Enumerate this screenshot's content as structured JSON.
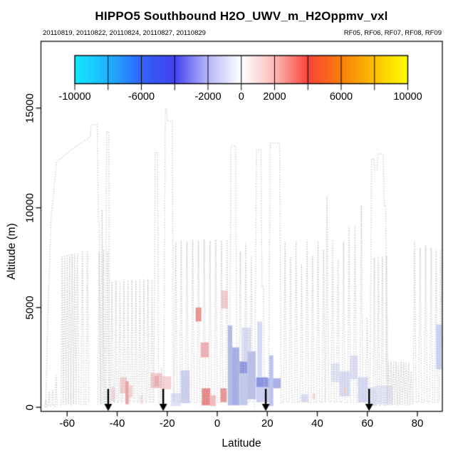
{
  "page": {
    "background": "#ffffff"
  },
  "chart_data": {
    "type": "scatter",
    "title": "HIPPO5 Southbound H2O_UWV_m_H2Oppmv_vxl",
    "subtitle_left": "20110819, 20110822, 20110824, 20110827, 20110829",
    "subtitle_right": "RF05, RF06, RF07, RF08, RF09",
    "xlabel": "Latitude",
    "ylabel": "Altitude (m)",
    "xlim": [
      -70.6,
      89.8
    ],
    "ylim": [
      -210,
      18350
    ],
    "grid": false,
    "x_ticks": [
      -60,
      -40,
      -20,
      0,
      20,
      40,
      60,
      80
    ],
    "y_ticks": [
      0,
      5000,
      10000,
      15000
    ],
    "track_color": "#c3c3c3",
    "arrow_color": "#000000",
    "axis_color": "#1a1a1a",
    "colorbar": {
      "position": "top-inside",
      "min": -10000,
      "max": 10000,
      "tick_step": 2000,
      "labeled_ticks": [
        -10000,
        -6000,
        -2000,
        0,
        2000,
        6000,
        10000
      ],
      "gradient_stops": [
        {
          "value": -10000,
          "color": "#12e9fe"
        },
        {
          "value": -8000,
          "color": "#1db4fd"
        },
        {
          "value": -6000,
          "color": "#3163fb"
        },
        {
          "value": -4000,
          "color": "#4442f0"
        },
        {
          "value": -2000,
          "color": "#b7b8f8"
        },
        {
          "value": 0,
          "color": "#ffffff"
        },
        {
          "value": 2000,
          "color": "#fbbcb6"
        },
        {
          "value": 4000,
          "color": "#fa423a"
        },
        {
          "value": 6000,
          "color": "#f87e09"
        },
        {
          "value": 8000,
          "color": "#fcc103"
        },
        {
          "value": 10000,
          "color": "#fefe00"
        }
      ]
    },
    "event_arrows_lat": [
      -43.6,
      -21.6,
      19.4,
      60.7
    ],
    "flight_track_segments": [
      [
        [
          -68.9,
          50
        ],
        [
          -68.5,
          350
        ],
        [
          -68.1,
          50
        ],
        [
          -67.6,
          50
        ],
        [
          -67.2,
          800
        ],
        [
          -66.8,
          50
        ],
        [
          -66.2,
          50
        ],
        [
          -65.8,
          850
        ],
        [
          -65.4,
          50
        ],
        [
          -64.8,
          50
        ],
        [
          -64.4,
          1600
        ],
        [
          -64.0,
          50
        ]
      ],
      [
        [
          -68.6,
          0
        ],
        [
          -67.6,
          5000
        ],
        [
          -66.4,
          9500
        ],
        [
          -64.2,
          12300
        ],
        [
          -58.0,
          12950
        ],
        [
          -50.7,
          13560
        ],
        [
          -50.5,
          14160
        ],
        [
          -48.0,
          14160
        ],
        [
          -47.55,
          9300
        ],
        [
          -47.15,
          9300
        ],
        [
          -46.6,
          250
        ],
        [
          -46.0,
          9900
        ],
        [
          -45.45,
          250
        ],
        [
          -44.8,
          250
        ],
        [
          -44.2,
          13830
        ],
        [
          -43.35,
          13830
        ],
        [
          -43.0,
          250
        ]
      ],
      [
        [
          -62.4,
          100
        ],
        [
          -62.0,
          7600
        ],
        [
          -61.5,
          150
        ],
        [
          -61.0,
          7620
        ],
        [
          -60.5,
          100
        ],
        [
          -60.0,
          7650
        ],
        [
          -59.5,
          150
        ],
        [
          -59.0,
          7650
        ],
        [
          -58.5,
          100
        ],
        [
          -58.0,
          7680
        ],
        [
          -57.5,
          150
        ],
        [
          -57.0,
          7700
        ],
        [
          -56.5,
          100
        ],
        [
          -55.9,
          7700
        ],
        [
          -55.3,
          150
        ],
        [
          -54.5,
          150
        ],
        [
          -53.9,
          7800
        ],
        [
          -53.3,
          150
        ],
        [
          -52.5,
          150
        ],
        [
          -51.9,
          7800
        ],
        [
          -51.3,
          150
        ]
      ],
      [
        [
          -47.7,
          150
        ],
        [
          -47.2,
          7800
        ],
        [
          -46.7,
          150
        ],
        [
          -46.0,
          150
        ],
        [
          -45.5,
          7900
        ],
        [
          -45.0,
          150
        ],
        [
          -44.3,
          150
        ],
        [
          -43.8,
          7800
        ],
        [
          -43.3,
          150
        ]
      ],
      [
        [
          -42.6,
          250
        ],
        [
          -42.1,
          6300
        ],
        [
          -41.6,
          250
        ],
        [
          -41.0,
          250
        ],
        [
          -40.5,
          6350
        ],
        [
          -40.0,
          250
        ],
        [
          -39.4,
          250
        ],
        [
          -38.9,
          6300
        ],
        [
          -38.4,
          250
        ],
        [
          -37.8,
          250
        ],
        [
          -37.3,
          6400
        ],
        [
          -36.8,
          250
        ],
        [
          -36.2,
          250
        ],
        [
          -35.7,
          6350
        ],
        [
          -35.2,
          250
        ],
        [
          -34.6,
          250
        ],
        [
          -34.1,
          6400
        ],
        [
          -33.6,
          250
        ],
        [
          -33.0,
          250
        ],
        [
          -32.5,
          6350
        ],
        [
          -32.0,
          250
        ],
        [
          -31.4,
          250
        ],
        [
          -30.9,
          6450
        ],
        [
          -30.4,
          250
        ],
        [
          -29.8,
          250
        ],
        [
          -29.3,
          6400
        ],
        [
          -28.8,
          250
        ],
        [
          -28.2,
          250
        ],
        [
          -27.7,
          6450
        ],
        [
          -27.2,
          250
        ],
        [
          -26.6,
          250
        ],
        [
          -26.1,
          6400
        ],
        [
          -25.6,
          250
        ]
      ],
      [
        [
          -25.4,
          250
        ],
        [
          -24.8,
          12760
        ],
        [
          -23.9,
          12780
        ],
        [
          -23.45,
          250
        ],
        [
          -22.8,
          250
        ],
        [
          -22.3,
          2000
        ],
        [
          -21.9,
          0
        ]
      ],
      [
        [
          -21.4,
          0
        ],
        [
          -20.75,
          14950
        ],
        [
          -20.15,
          14950
        ],
        [
          -20.05,
          14350
        ],
        [
          -17.95,
          14350
        ],
        [
          -17.5,
          250
        ]
      ],
      [
        [
          -17.2,
          250
        ],
        [
          -16.6,
          8300
        ],
        [
          -16.0,
          250
        ],
        [
          -15.0,
          250
        ],
        [
          -14.4,
          8350
        ],
        [
          -13.8,
          250
        ],
        [
          -12.7,
          250
        ],
        [
          -12.1,
          8300
        ],
        [
          -11.5,
          250
        ],
        [
          -10.4,
          250
        ],
        [
          -9.8,
          8400
        ],
        [
          -9.2,
          250
        ],
        [
          -8.1,
          250
        ],
        [
          -7.5,
          8350
        ],
        [
          -6.9,
          250
        ],
        [
          -5.8,
          250
        ],
        [
          -5.2,
          8400
        ],
        [
          -4.6,
          250
        ],
        [
          -3.5,
          250
        ],
        [
          -2.9,
          8350
        ],
        [
          -2.3,
          250
        ],
        [
          -1.2,
          250
        ],
        [
          -0.6,
          8400
        ],
        [
          0.0,
          250
        ],
        [
          1.1,
          250
        ],
        [
          1.7,
          8350
        ],
        [
          2.3,
          250
        ],
        [
          3.3,
          250
        ],
        [
          3.9,
          8400
        ],
        [
          4.5,
          250
        ]
      ],
      [
        [
          4.9,
          250
        ],
        [
          5.5,
          13100
        ],
        [
          7.3,
          13100
        ],
        [
          7.9,
          250
        ],
        [
          8.6,
          250
        ],
        [
          9.2,
          7800
        ],
        [
          9.8,
          250
        ],
        [
          10.8,
          250
        ],
        [
          11.4,
          8200
        ],
        [
          12.0,
          250
        ],
        [
          13.0,
          250
        ],
        [
          13.6,
          7600
        ],
        [
          14.2,
          250
        ]
      ],
      [
        [
          14.9,
          0
        ],
        [
          15.7,
          12900
        ],
        [
          17.5,
          12900
        ],
        [
          17.9,
          6100
        ],
        [
          18.4,
          6100
        ],
        [
          19.0,
          0
        ]
      ],
      [
        [
          19.9,
          0
        ],
        [
          20.5,
          500
        ],
        [
          21.2,
          13250
        ],
        [
          24.9,
          13250
        ],
        [
          25.6,
          250
        ],
        [
          26.5,
          250
        ],
        [
          27.1,
          8300
        ],
        [
          27.7,
          250
        ],
        [
          28.7,
          250
        ],
        [
          29.3,
          7500
        ],
        [
          29.9,
          250
        ],
        [
          30.9,
          250
        ],
        [
          31.5,
          8350
        ],
        [
          32.1,
          250
        ],
        [
          33.1,
          250
        ],
        [
          33.7,
          7200
        ],
        [
          34.3,
          250
        ],
        [
          35.3,
          250
        ],
        [
          35.9,
          8400
        ],
        [
          36.5,
          250
        ],
        [
          37.5,
          250
        ],
        [
          38.1,
          7600
        ],
        [
          38.7,
          250
        ],
        [
          39.7,
          250
        ],
        [
          40.3,
          8350
        ],
        [
          40.9,
          250
        ],
        [
          41.9,
          250
        ],
        [
          42.5,
          7900
        ],
        [
          43.1,
          250
        ],
        [
          43.3,
          250
        ],
        [
          43.9,
          10600
        ],
        [
          44.5,
          250
        ],
        [
          45.5,
          250
        ],
        [
          46.1,
          8400
        ],
        [
          46.7,
          250
        ],
        [
          47.7,
          250
        ],
        [
          48.3,
          7400
        ],
        [
          48.9,
          250
        ],
        [
          49.9,
          250
        ],
        [
          50.5,
          8300
        ],
        [
          51.1,
          250
        ],
        [
          52.1,
          250
        ],
        [
          52.7,
          9100
        ],
        [
          53.3,
          250
        ],
        [
          54.5,
          250
        ],
        [
          55.1,
          9100
        ],
        [
          55.7,
          250
        ],
        [
          57.0,
          250
        ],
        [
          57.6,
          10100
        ],
        [
          58.2,
          250
        ],
        [
          59.3,
          250
        ],
        [
          59.9,
          4500
        ],
        [
          60.6,
          0
        ]
      ],
      [
        [
          61.0,
          0
        ],
        [
          61.7,
          12450
        ],
        [
          62.7,
          12450
        ],
        [
          62.9,
          11900
        ],
        [
          63.9,
          11900
        ],
        [
          64.2,
          12700
        ],
        [
          66.3,
          12700
        ],
        [
          66.8,
          10100
        ],
        [
          67.3,
          10100
        ],
        [
          67.9,
          150
        ]
      ],
      [
        [
          62.3,
          100
        ],
        [
          62.8,
          7500
        ],
        [
          63.3,
          100
        ],
        [
          63.9,
          100
        ],
        [
          64.4,
          7600
        ],
        [
          64.9,
          100
        ],
        [
          65.5,
          100
        ],
        [
          66.0,
          7550
        ],
        [
          66.5,
          100
        ],
        [
          67.2,
          100
        ],
        [
          67.7,
          7600
        ],
        [
          68.2,
          100
        ]
      ],
      [
        [
          68.0,
          100
        ],
        [
          68.5,
          2300
        ],
        [
          69.0,
          100
        ],
        [
          69.5,
          2300
        ],
        [
          70.0,
          100
        ],
        [
          70.5,
          2300
        ],
        [
          71.0,
          100
        ],
        [
          71.5,
          2300
        ],
        [
          72.0,
          100
        ],
        [
          72.5,
          2250
        ],
        [
          73.0,
          100
        ],
        [
          73.5,
          2300
        ],
        [
          74.0,
          100
        ],
        [
          74.5,
          2250
        ],
        [
          75.0,
          100
        ],
        [
          75.5,
          2300
        ],
        [
          76.0,
          100
        ],
        [
          76.5,
          2250
        ],
        [
          77.0,
          100
        ],
        [
          77.5,
          1800
        ],
        [
          78.0,
          100
        ]
      ],
      [
        [
          78.3,
          250
        ],
        [
          78.9,
          8300
        ],
        [
          79.5,
          250
        ],
        [
          80.5,
          250
        ],
        [
          81.1,
          8000
        ],
        [
          81.7,
          250
        ],
        [
          82.7,
          250
        ],
        [
          83.3,
          8100
        ],
        [
          83.9,
          250
        ],
        [
          84.9,
          250
        ],
        [
          85.5,
          8000
        ],
        [
          86.1,
          250
        ],
        [
          86.9,
          250
        ],
        [
          87.5,
          7900
        ],
        [
          88.1,
          250
        ],
        [
          88.7,
          250
        ],
        [
          89.3,
          7900
        ],
        [
          89.7,
          3000
        ]
      ]
    ],
    "h2o_diff_cells": [
      [
        -42.6,
        -40.8,
        300,
        1000,
        "#f8dbdb"
      ],
      [
        -38.9,
        -36.2,
        700,
        1500,
        "#f6cccc"
      ],
      [
        -36.7,
        -35.4,
        150,
        1300,
        "#efa0a0"
      ],
      [
        -35.4,
        -33.8,
        500,
        1100,
        "#f8d8d8"
      ],
      [
        -31.0,
        -29.6,
        150,
        600,
        "#fbeaea"
      ],
      [
        -26.6,
        -22.0,
        950,
        1700,
        "#f5c8c8"
      ],
      [
        -25.1,
        -23.3,
        1050,
        1550,
        "#f0abab"
      ],
      [
        -22.0,
        -18.4,
        900,
        1550,
        "#f7d2d2"
      ],
      [
        -18.6,
        -14.6,
        60,
        700,
        "#dfe2f8"
      ],
      [
        -14.6,
        -11.0,
        200,
        1850,
        "#ccd1f3"
      ],
      [
        -8.6,
        -6.4,
        4300,
        5000,
        "#ee8a8a"
      ],
      [
        -6.6,
        -3.4,
        2500,
        3250,
        "#f3aeae"
      ],
      [
        -6.2,
        -2.8,
        100,
        950,
        "#ec8484"
      ],
      [
        -3.0,
        -0.6,
        60,
        600,
        "#f4bcbc"
      ],
      [
        1.3,
        3.8,
        250,
        950,
        "#ea9191"
      ],
      [
        1.6,
        4.2,
        4950,
        5850,
        "#f6caca"
      ],
      [
        4.2,
        6.0,
        100,
        4100,
        "#b4baeb"
      ],
      [
        6.0,
        8.8,
        100,
        3000,
        "#a6aee7"
      ],
      [
        8.9,
        12.1,
        1700,
        2300,
        "#8d96e2"
      ],
      [
        8.9,
        12.1,
        100,
        1700,
        "#c3c9f0"
      ],
      [
        9.8,
        13.5,
        2300,
        4000,
        "#dadef6"
      ],
      [
        12.1,
        15.4,
        400,
        2800,
        "#b9bfee"
      ],
      [
        15.6,
        20.2,
        1000,
        1500,
        "#8a94e1"
      ],
      [
        20.2,
        25.4,
        950,
        1450,
        "#aab1e9"
      ],
      [
        15.6,
        21.0,
        250,
        1000,
        "#ccd1f3"
      ],
      [
        20.8,
        22.4,
        60,
        2600,
        "#bcc3ee"
      ],
      [
        16.0,
        18.0,
        1500,
        4300,
        "#d6daf5"
      ],
      [
        33.5,
        36.5,
        250,
        650,
        "#dcdff6"
      ],
      [
        38.0,
        39.2,
        400,
        700,
        "#f8dede"
      ],
      [
        45.5,
        48.8,
        1250,
        2200,
        "#e3e5f8"
      ],
      [
        48.8,
        53.0,
        550,
        1800,
        "#d9ddf6"
      ],
      [
        50.6,
        51.6,
        700,
        1000,
        "#f6cfcf"
      ],
      [
        53.0,
        56.2,
        1400,
        2600,
        "#dde0f7"
      ],
      [
        56.2,
        60.2,
        250,
        1500,
        "#d6daf5"
      ],
      [
        60.2,
        63.4,
        60,
        1000,
        "#e0e3f7"
      ],
      [
        63.4,
        70.0,
        150,
        1100,
        "#e7e9fa"
      ],
      [
        87.5,
        89.8,
        1900,
        4150,
        "#ccd3f3"
      ]
    ]
  }
}
